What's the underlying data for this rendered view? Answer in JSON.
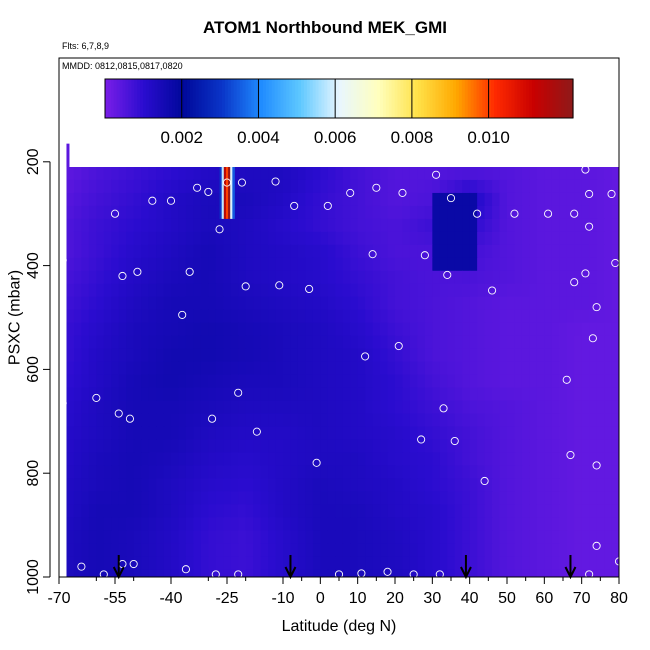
{
  "title": "ATOM1 Northbound MEK_GMI",
  "flights_label": "Flts: 6,7,8,9",
  "dates_label": "MMDD: 0812,0815,0817,0820",
  "colorbar": {
    "min": 0.0,
    "max": 0.0122,
    "ticks": [
      "0.002",
      "0.004",
      "0.006",
      "0.008",
      "0.010"
    ],
    "tick_values": [
      0.002,
      0.004,
      0.006,
      0.008,
      0.01
    ],
    "colors": [
      "#7a1ee8",
      "#2a0ccf",
      "#00089a",
      "#0a35c8",
      "#1f8bff",
      "#5ec8ff",
      "#e8f6ff",
      "#ffffbe",
      "#ffe24a",
      "#ffa800",
      "#ff2a00",
      "#c80000",
      "#8e1a1a"
    ]
  },
  "chart_data": {
    "type": "heatmap",
    "title": "ATOM1 Northbound MEK_GMI",
    "xlabel": "Latitude (deg N)",
    "ylabel": "PSXC (mbar)",
    "xlim": [
      -70,
      80
    ],
    "ylim": [
      1000,
      0
    ],
    "x_ticks": [
      "-70",
      "-55",
      "-40",
      "-25",
      "-10",
      "0",
      "10",
      "20",
      "30",
      "40",
      "50",
      "60",
      "70",
      "80"
    ],
    "x_minor_ticks": [
      -60,
      -50,
      -30,
      -20,
      -5,
      5,
      15,
      25,
      35,
      45,
      55,
      65,
      75
    ],
    "y_ticks": [
      "200",
      "400",
      "600",
      "800",
      "1000"
    ],
    "latitudes": [
      -70,
      -60,
      -50,
      -40,
      -30,
      -20,
      -10,
      0,
      10,
      20,
      30,
      40,
      50,
      60,
      70,
      80
    ],
    "pressure_levels": [
      225,
      275,
      325,
      375,
      425,
      475,
      525,
      575,
      625,
      675,
      725,
      775,
      825,
      875,
      925,
      975
    ],
    "values": [
      [
        0.0003,
        0.0006,
        0.0008,
        0.001,
        0.0012,
        0.0013,
        0.0013,
        0.001,
        0.0007,
        0.0005,
        0.0005,
        0.0006,
        0.0005,
        0.0004,
        0.0004,
        0.0003
      ],
      [
        0.0004,
        0.0007,
        0.0009,
        0.0012,
        0.0014,
        0.0014,
        0.0012,
        0.0009,
        0.0007,
        0.0005,
        0.0006,
        0.0013,
        0.0005,
        0.0004,
        0.0004,
        0.0003
      ],
      [
        0.0005,
        0.0008,
        0.001,
        0.0012,
        0.0014,
        0.0013,
        0.0011,
        0.0009,
        0.0007,
        0.0006,
        0.0008,
        0.001,
        0.0005,
        0.0004,
        0.0004,
        0.0003
      ],
      [
        0.0005,
        0.0008,
        0.0011,
        0.0013,
        0.0015,
        0.0013,
        0.0012,
        0.0011,
        0.0008,
        0.0006,
        0.0006,
        0.0007,
        0.0005,
        0.0004,
        0.0004,
        0.0003
      ],
      [
        0.0006,
        0.0009,
        0.0012,
        0.0014,
        0.0015,
        0.0013,
        0.0012,
        0.0011,
        0.0009,
        0.0007,
        0.0006,
        0.0006,
        0.0005,
        0.0004,
        0.0004,
        0.0003
      ],
      [
        0.0007,
        0.001,
        0.0013,
        0.0015,
        0.0015,
        0.0014,
        0.0013,
        0.0012,
        0.001,
        0.0007,
        0.0006,
        0.0005,
        0.0004,
        0.0004,
        0.0004,
        0.0003
      ],
      [
        0.0008,
        0.0011,
        0.0014,
        0.0015,
        0.0016,
        0.0015,
        0.0014,
        0.0013,
        0.0011,
        0.0008,
        0.0006,
        0.0005,
        0.0004,
        0.0004,
        0.0003,
        0.0003
      ],
      [
        0.0008,
        0.0012,
        0.0014,
        0.0016,
        0.0016,
        0.0015,
        0.0014,
        0.0013,
        0.0012,
        0.0009,
        0.0006,
        0.0005,
        0.0004,
        0.0004,
        0.0003,
        0.0003
      ],
      [
        0.0009,
        0.0012,
        0.0015,
        0.0016,
        0.0015,
        0.0014,
        0.0014,
        0.0013,
        0.0012,
        0.001,
        0.0007,
        0.0005,
        0.0004,
        0.0004,
        0.0003,
        0.0003
      ],
      [
        0.001,
        0.0013,
        0.0015,
        0.0015,
        0.0014,
        0.0013,
        0.0013,
        0.0013,
        0.0012,
        0.001,
        0.0008,
        0.0006,
        0.0005,
        0.0004,
        0.0003,
        0.0003
      ],
      [
        0.0011,
        0.0013,
        0.0015,
        0.0015,
        0.0013,
        0.0012,
        0.0012,
        0.0013,
        0.0012,
        0.0011,
        0.0009,
        0.0007,
        0.0005,
        0.0004,
        0.0003,
        0.0003
      ],
      [
        0.0011,
        0.0014,
        0.0015,
        0.0014,
        0.0012,
        0.0011,
        0.0012,
        0.0013,
        0.0013,
        0.0011,
        0.001,
        0.0007,
        0.0005,
        0.0004,
        0.0003,
        0.0003
      ],
      [
        0.0012,
        0.0014,
        0.0015,
        0.0013,
        0.0011,
        0.001,
        0.0012,
        0.0014,
        0.0013,
        0.0012,
        0.001,
        0.0008,
        0.0005,
        0.0004,
        0.0003,
        0.0003
      ],
      [
        0.0012,
        0.0015,
        0.0015,
        0.0013,
        0.001,
        0.0009,
        0.0012,
        0.0014,
        0.0014,
        0.0012,
        0.0011,
        0.0008,
        0.0005,
        0.0004,
        0.0003,
        0.0003
      ],
      [
        0.0013,
        0.0015,
        0.0014,
        0.0012,
        0.0009,
        0.0008,
        0.0011,
        0.0014,
        0.0014,
        0.0013,
        0.0011,
        0.0008,
        0.0005,
        0.0004,
        0.0003,
        0.0003
      ],
      [
        0.0013,
        0.0015,
        0.0014,
        0.0012,
        0.0009,
        0.0008,
        0.0011,
        0.0014,
        0.0014,
        0.0013,
        0.0011,
        0.0008,
        0.0005,
        0.0004,
        0.0003,
        0.0003
      ]
    ],
    "data_lat_range": [
      -68,
      80
    ],
    "data_top_pressure": 210,
    "plume": {
      "lat_range": [
        -27,
        -23
      ],
      "pressure_range": [
        210,
        310
      ],
      "columns": [
        0.003,
        0.0058,
        0.0115,
        0.01,
        0.012,
        0.006,
        0.0035
      ]
    },
    "enhancement": {
      "lat_range": [
        30,
        42
      ],
      "pressure_range": [
        260,
        400
      ],
      "value": 0.0018
    },
    "flights": [
      "6",
      "7",
      "8",
      "9"
    ],
    "dates": [
      "0812",
      "0815",
      "0817",
      "0820"
    ],
    "observation_points": [
      {
        "x": -64,
        "y": 980
      },
      {
        "x": -58,
        "y": 995
      },
      {
        "x": -53,
        "y": 975
      },
      {
        "x": -50,
        "y": 975
      },
      {
        "x": -36,
        "y": 985
      },
      {
        "x": -28,
        "y": 995
      },
      {
        "x": -22,
        "y": 995
      },
      {
        "x": 5,
        "y": 995
      },
      {
        "x": 11,
        "y": 993
      },
      {
        "x": 18,
        "y": 990
      },
      {
        "x": 25,
        "y": 995
      },
      {
        "x": 32,
        "y": 995
      },
      {
        "x": 72,
        "y": 995
      },
      {
        "x": 80,
        "y": 970
      },
      {
        "x": 74,
        "y": 940
      },
      {
        "x": -69,
        "y": 390
      },
      {
        "x": -69,
        "y": 665
      },
      {
        "x": -60,
        "y": 655
      },
      {
        "x": -54,
        "y": 685
      },
      {
        "x": -51,
        "y": 695
      },
      {
        "x": -53,
        "y": 420
      },
      {
        "x": -49,
        "y": 412
      },
      {
        "x": -45,
        "y": 275
      },
      {
        "x": -40,
        "y": 275
      },
      {
        "x": -55,
        "y": 300
      },
      {
        "x": -37,
        "y": 495
      },
      {
        "x": -35,
        "y": 412
      },
      {
        "x": -33,
        "y": 250
      },
      {
        "x": -30,
        "y": 258
      },
      {
        "x": -27,
        "y": 330
      },
      {
        "x": -25,
        "y": 240
      },
      {
        "x": -21,
        "y": 240
      },
      {
        "x": -22,
        "y": 645
      },
      {
        "x": -29,
        "y": 695
      },
      {
        "x": -20,
        "y": 440
      },
      {
        "x": -17,
        "y": 720
      },
      {
        "x": -12,
        "y": 238
      },
      {
        "x": -11,
        "y": 438
      },
      {
        "x": -7,
        "y": 285
      },
      {
        "x": -3,
        "y": 445
      },
      {
        "x": -1,
        "y": 780
      },
      {
        "x": 2,
        "y": 285
      },
      {
        "x": 8,
        "y": 260
      },
      {
        "x": 12,
        "y": 575
      },
      {
        "x": 14,
        "y": 378
      },
      {
        "x": 15,
        "y": 250
      },
      {
        "x": 21,
        "y": 555
      },
      {
        "x": 22,
        "y": 260
      },
      {
        "x": 27,
        "y": 735
      },
      {
        "x": 28,
        "y": 380
      },
      {
        "x": 31,
        "y": 225
      },
      {
        "x": 33,
        "y": 675
      },
      {
        "x": 34,
        "y": 418
      },
      {
        "x": 35,
        "y": 270
      },
      {
        "x": 36,
        "y": 738
      },
      {
        "x": 42,
        "y": 300
      },
      {
        "x": 44,
        "y": 815
      },
      {
        "x": 46,
        "y": 448
      },
      {
        "x": 52,
        "y": 300
      },
      {
        "x": 61,
        "y": 300
      },
      {
        "x": 66,
        "y": 620
      },
      {
        "x": 67,
        "y": 765
      },
      {
        "x": 68,
        "y": 432
      },
      {
        "x": 68,
        "y": 300
      },
      {
        "x": 71,
        "y": 215
      },
      {
        "x": 71,
        "y": 415
      },
      {
        "x": 72,
        "y": 262
      },
      {
        "x": 72,
        "y": 325
      },
      {
        "x": 73,
        "y": 540
      },
      {
        "x": 74,
        "y": 480
      },
      {
        "x": 74,
        "y": 785
      },
      {
        "x": 78,
        "y": 262
      },
      {
        "x": 79,
        "y": 395
      }
    ],
    "arrow_latitudes": [
      -54,
      -8,
      39,
      67
    ]
  }
}
